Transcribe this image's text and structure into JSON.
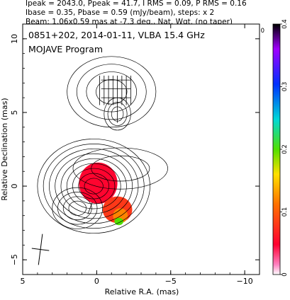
{
  "header": {
    "line1": "Ipeak = 2043.0, Ppeak = 41.7, I RMS = 0.09, P RMS = 0.16",
    "line2": "Ibase = 0.35, Pbase = 0.59 (mJy/beam), steps: x 2",
    "line3": "Beam: 1.06x0.59 mas at -7.3 deg., Nat. Wgt. (no taper)"
  },
  "chart_data": {
    "type": "heatmap",
    "title": "0851+202, 2014-01-11, VLBA 15.4 GHz",
    "subtitle": "MOJAVE Program",
    "xlabel": "Relative R.A. (mas)",
    "ylabel": "Relative Declination (mas)",
    "xlim": [
      5,
      -11
    ],
    "ylim": [
      -6,
      11
    ],
    "xticks": [
      5,
      0,
      -5,
      -10
    ],
    "xtick_labels": [
      "5",
      "0",
      "−5",
      "−10"
    ],
    "yticks": [
      -5,
      0,
      5,
      10
    ],
    "ytick_labels": [
      "−5",
      "0",
      "5",
      "10"
    ],
    "colorbar": {
      "range": [
        0,
        0.4
      ],
      "ticks": [
        0,
        0.1,
        0.2,
        0.3,
        0.4
      ],
      "tick_labels": [
        "0",
        "0.1",
        "0.2",
        "0.3",
        "0.4"
      ],
      "corner_label": "0"
    },
    "contour_components": [
      {
        "x": 0.2,
        "y": 0.0,
        "rx": 3.8,
        "ry": 3.2,
        "levels": 9
      },
      {
        "x": 1.3,
        "y": -1.5,
        "rx": 1.7,
        "ry": 1.4,
        "levels": 4
      },
      {
        "x": -1.6,
        "y": 1.2,
        "rx": 3.2,
        "ry": 1.4,
        "levels": 2
      },
      {
        "x": -1.0,
        "y": 6.4,
        "rx": 3.0,
        "ry": 2.4,
        "levels": 4
      },
      {
        "x": -1.4,
        "y": 4.9,
        "rx": 0.9,
        "ry": 1.1,
        "levels": 3
      }
    ],
    "polarized_regions": [
      {
        "x": -0.1,
        "y": 0.2,
        "rx": 1.3,
        "ry": 1.4,
        "value": 0.05
      },
      {
        "x": -1.4,
        "y": -1.6,
        "rx": 1.0,
        "ry": 0.9,
        "value": 0.08
      },
      {
        "x": -1.6,
        "y": -2.0,
        "rx": 0.5,
        "ry": 0.5,
        "value": 0.12
      },
      {
        "x": -1.5,
        "y": -2.4,
        "rx": 0.3,
        "ry": 0.25,
        "value": 0.2
      }
    ],
    "beam": {
      "major": 1.06,
      "minor": 0.59,
      "pa": -7.3
    }
  },
  "colors": {
    "frame": "#000000",
    "contour": "#000000",
    "background": "#ffffff"
  }
}
